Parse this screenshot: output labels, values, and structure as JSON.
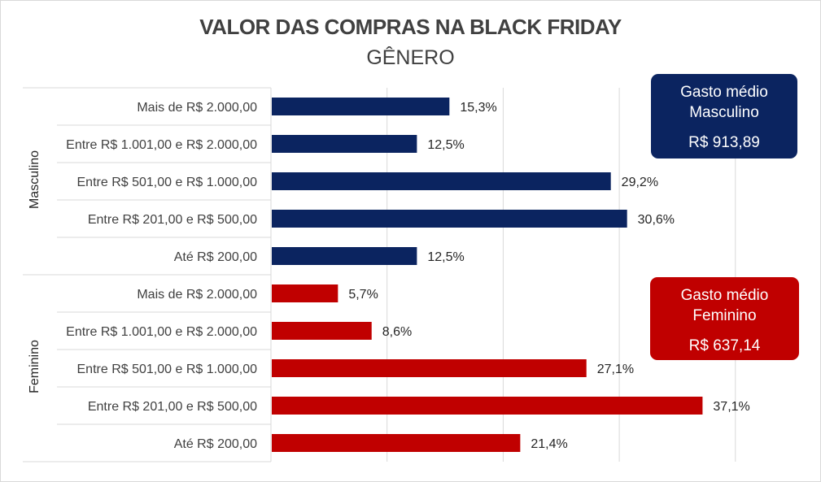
{
  "colors": {
    "masculino": "#0b2460",
    "feminino": "#c00000",
    "text": "#404040",
    "grid": "#d9d9d9"
  },
  "chart_data": {
    "type": "bar",
    "orientation": "horizontal",
    "title": "VALOR DAS COMPRAS NA BLACK FRIDAY",
    "subtitle": "GÊNERO",
    "xlim": [
      0,
      40
    ],
    "grid": true,
    "groups": [
      {
        "name": "Masculino",
        "categories": [
          "Mais de R$ 2.000,00",
          "Entre R$ 1.001,00 e R$ 2.000,00",
          "Entre R$ 501,00 e R$ 1.000,00",
          "Entre R$ 201,00 e R$ 500,00",
          "Até R$ 200,00"
        ],
        "values": [
          15.3,
          12.5,
          29.2,
          30.6,
          12.5
        ],
        "labels": [
          "15,3%",
          "12,5%",
          "29,2%",
          "30,6%",
          "12,5%"
        ]
      },
      {
        "name": "Feminino",
        "categories": [
          "Mais de R$ 2.000,00",
          "Entre R$ 1.001,00 e R$ 2.000,00",
          "Entre R$ 501,00 e R$ 1.000,00",
          "Entre R$ 201,00 e R$ 500,00",
          "Até R$ 200,00"
        ],
        "values": [
          5.7,
          8.6,
          27.1,
          37.1,
          21.4
        ],
        "labels": [
          "5,7%",
          "8,6%",
          "27,1%",
          "37,1%",
          "21,4%"
        ]
      }
    ]
  },
  "boxes": {
    "masculino": {
      "line1": "Gasto médio",
      "line2": "Masculino",
      "value": "R$ 913,89"
    },
    "feminino": {
      "line1": "Gasto médio",
      "line2": "Feminino",
      "value": "R$ 637,14"
    }
  }
}
